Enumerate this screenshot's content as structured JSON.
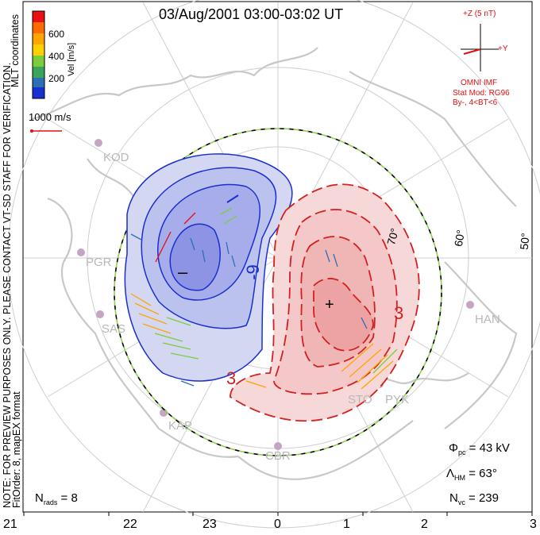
{
  "title": "03/Aug/2001 03:00-03:02 UT",
  "side_text": {
    "preview_note": "NOTE: FOR PREVIEW PURPOSES ONLY. PLEASE CONTACT VT-SD STAFF FOR VERIFICATION.",
    "fit_info": "FitOrder: 8,  mapEX format",
    "coords": "MLT coordinates"
  },
  "colorbar": {
    "ticks": [
      "600",
      "400",
      "200"
    ],
    "label": "Vel [m/s]",
    "colors": [
      "#e81010",
      "#ff6a00",
      "#ffa500",
      "#ffd000",
      "#7ccd3c",
      "#3aa55a",
      "#2c6fb7",
      "#1a2fd0"
    ]
  },
  "scale": {
    "label": "1000 m/s",
    "color": "#e01010"
  },
  "imf": {
    "z_label": "+Z (5 nT)",
    "y_label": "+Y",
    "source": "OMNI IMF",
    "model": "Stat Mod: RG96",
    "condition": "By-, 4<BT<6"
  },
  "lat_labels": [
    "70°",
    "60°",
    "50°"
  ],
  "stations": [
    "KOD",
    "PGR",
    "SAS",
    "KAP",
    "CBR",
    "STO",
    "PYK",
    "HAN"
  ],
  "contour_labels": {
    "neg_label": "-9",
    "pos_label": "3",
    "pos_label2": "3",
    "neg_mark": "–",
    "pos_mark": "+"
  },
  "stats": {
    "phi_label": "Φ",
    "phi_sub": "pc",
    "phi_value": "= 43 kV",
    "lam_label": "Λ",
    "lam_sub": "HM",
    "lam_value": "= 63°",
    "nvc_label": "N",
    "nvc_sub": "vc",
    "nvc_value": "= 239",
    "nrads_label": "N",
    "nrads_sub": "rads",
    "nrads_value": "= 8"
  },
  "mlt_ticks": [
    "21",
    "22",
    "23",
    "0",
    "1",
    "2",
    "3"
  ],
  "colors": {
    "negative": "#1a2fd0",
    "positive": "#d42020",
    "map": "#c8c8c8",
    "boundary": "#8fd14f"
  }
}
